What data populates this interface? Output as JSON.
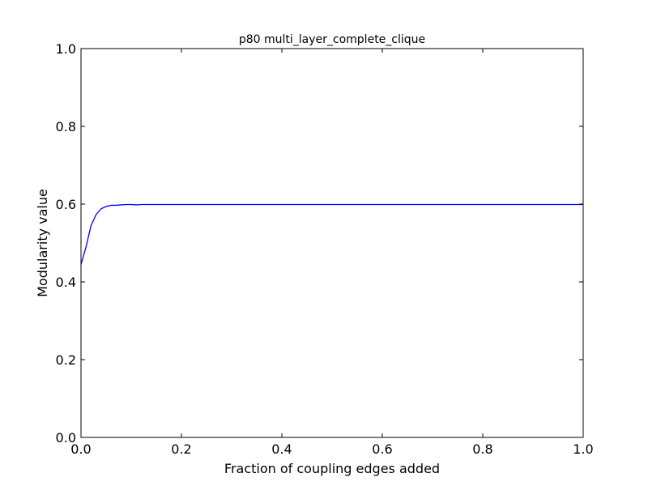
{
  "chart_data": {
    "type": "line",
    "title": "p80 multi_layer_complete_clique",
    "xlabel": "Fraction of coupling edges added",
    "ylabel": "Modularity value",
    "xlim": [
      0.0,
      1.0
    ],
    "ylim": [
      0.0,
      1.0
    ],
    "xticks": [
      0.0,
      0.2,
      0.4,
      0.6,
      0.8,
      1.0
    ],
    "yticks": [
      0.0,
      0.2,
      0.4,
      0.6,
      0.8,
      1.0
    ],
    "xtick_labels": [
      "0.0",
      "0.2",
      "0.4",
      "0.6",
      "0.8",
      "1.0"
    ],
    "ytick_labels": [
      "0.0",
      "0.2",
      "0.4",
      "0.6",
      "0.8",
      "1.0"
    ],
    "grid": false,
    "series": [
      {
        "color": "#0000ff",
        "x": [
          0.0,
          0.01,
          0.02,
          0.03,
          0.04,
          0.05,
          0.06,
          0.07,
          0.08,
          0.09,
          0.1,
          0.11,
          0.12,
          0.15,
          0.2,
          0.3,
          0.4,
          0.5,
          0.6,
          0.7,
          0.8,
          0.9,
          1.0
        ],
        "y": [
          0.445,
          0.49,
          0.545,
          0.573,
          0.588,
          0.594,
          0.597,
          0.597,
          0.598,
          0.599,
          0.599,
          0.598,
          0.599,
          0.599,
          0.599,
          0.599,
          0.599,
          0.599,
          0.599,
          0.599,
          0.599,
          0.599,
          0.599
        ]
      }
    ]
  }
}
